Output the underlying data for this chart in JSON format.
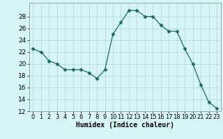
{
  "x": [
    0,
    1,
    2,
    3,
    4,
    5,
    6,
    7,
    8,
    9,
    10,
    11,
    12,
    13,
    14,
    15,
    16,
    17,
    18,
    19,
    20,
    21,
    22,
    23
  ],
  "y": [
    22.5,
    22.0,
    20.5,
    20.0,
    19.0,
    19.0,
    19.0,
    18.5,
    17.5,
    19.0,
    25.0,
    27.0,
    29.0,
    29.0,
    28.0,
    28.0,
    26.5,
    25.5,
    25.5,
    22.5,
    20.0,
    16.5,
    13.5,
    12.5
  ],
  "line_color": "#1a6b5a",
  "marker": "D",
  "marker_size": 2.5,
  "bg_color": "#d6f5f5",
  "grid_color": "#b8dada",
  "xlabel": "Humidex (Indice chaleur)",
  "ylim": [
    12,
    30
  ],
  "xlim": [
    -0.5,
    23.5
  ],
  "yticks": [
    12,
    14,
    16,
    18,
    20,
    22,
    24,
    26,
    28
  ],
  "xticks": [
    0,
    1,
    2,
    3,
    4,
    5,
    6,
    7,
    8,
    9,
    10,
    11,
    12,
    13,
    14,
    15,
    16,
    17,
    18,
    19,
    20,
    21,
    22,
    23
  ],
  "xlabel_fontsize": 7,
  "tick_fontsize": 6.5
}
